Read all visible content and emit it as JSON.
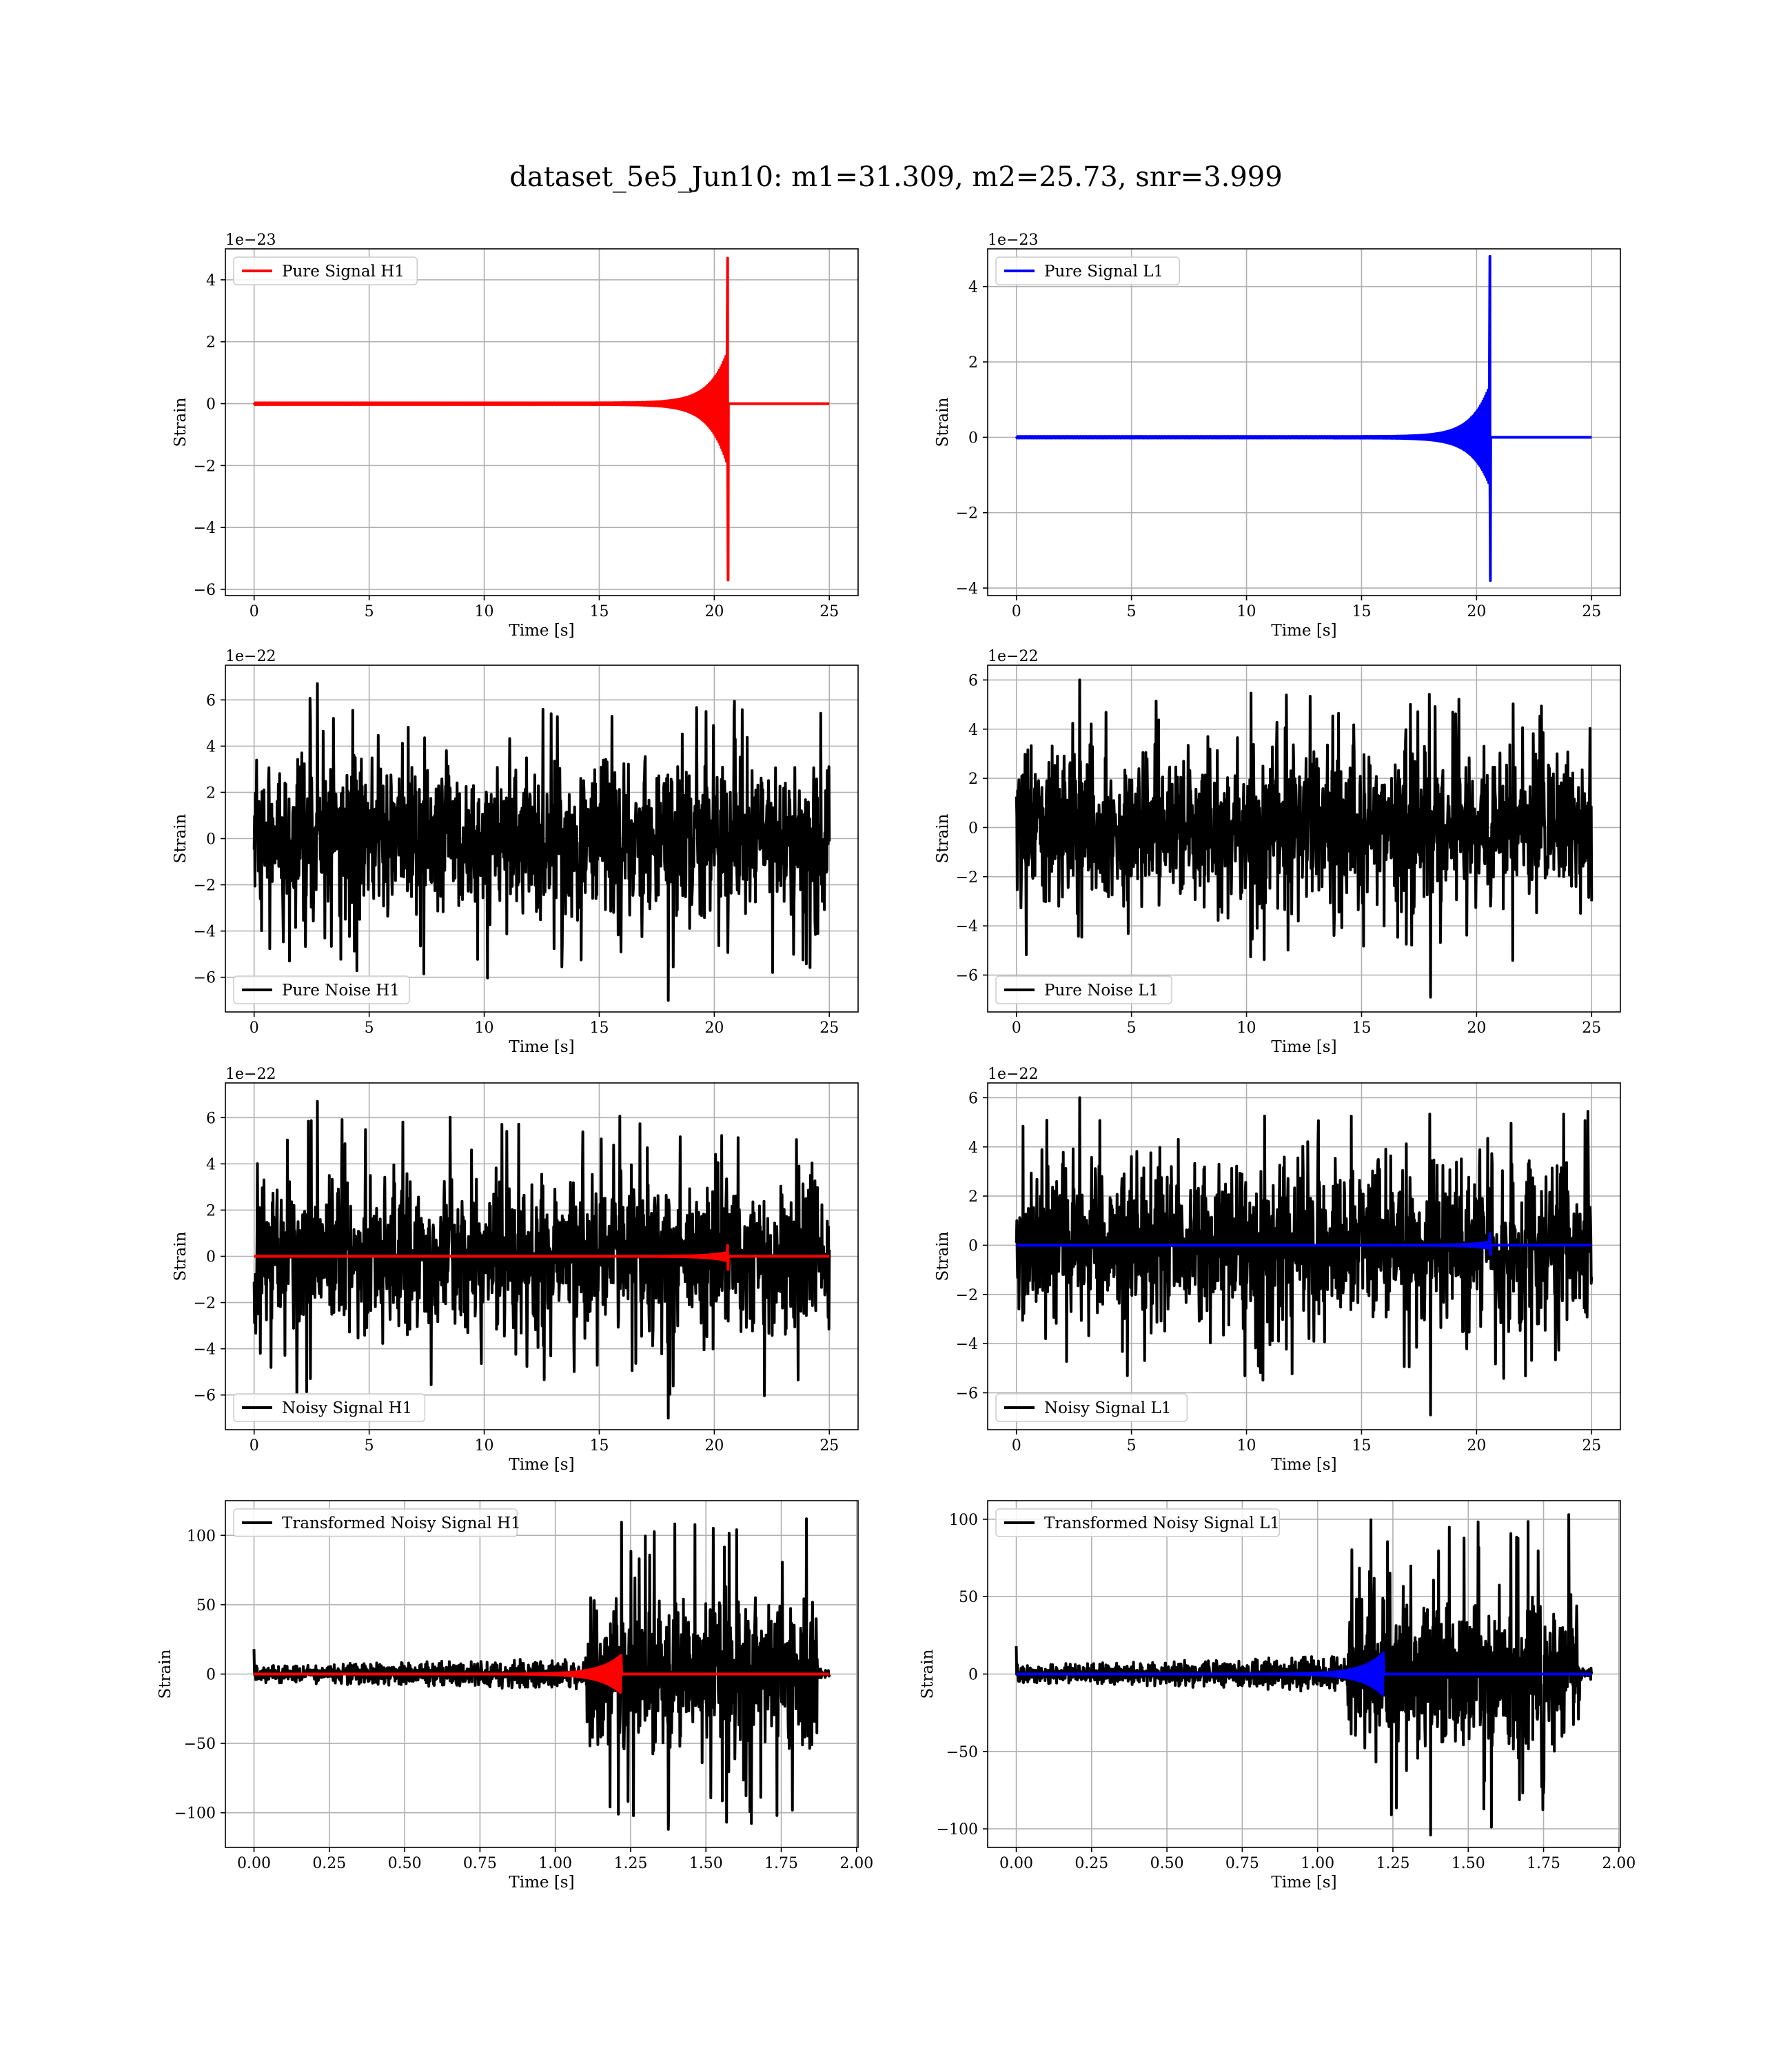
{
  "figure": {
    "title": "dataset_5e5_Jun10: m1=31.309, m2=25.73, snr=3.999"
  },
  "colors": {
    "h1_signal": "#ff0000",
    "l1_signal": "#0000ff",
    "noise": "#000000",
    "grid": "#b0b0b0",
    "axes": "#000000"
  },
  "chart_data": [
    {
      "type": "line",
      "row": 0,
      "col": 0,
      "xlabel": "Time [s]",
      "ylabel": "Strain",
      "offset": "1e−23",
      "xlim": [
        -1.25,
        26.25
      ],
      "ylim": [
        -6.2,
        5.0
      ],
      "xticks": [
        0,
        5,
        10,
        15,
        20,
        25
      ],
      "yticks": [
        -6,
        -4,
        -2,
        0,
        2,
        4
      ],
      "xtick_labels": [
        "0",
        "5",
        "10",
        "15",
        "20",
        "25"
      ],
      "ytick_labels": [
        "−6",
        "−4",
        "−2",
        "0",
        "2",
        "4"
      ],
      "grid": true,
      "legend_loc": "upper left",
      "series": [
        {
          "name": "Pure Signal H1",
          "kind": "chirp",
          "color": "#ff0000",
          "x_range": [
            0,
            25
          ],
          "merger_t": 20.6,
          "peak_pos": 4.7,
          "peak_neg": -5.7,
          "plateau_pos": 1.7,
          "plateau_neg": -2.0
        }
      ]
    },
    {
      "type": "line",
      "row": 0,
      "col": 1,
      "xlabel": "Time [s]",
      "ylabel": "Strain",
      "offset": "1e−23",
      "xlim": [
        -1.25,
        26.25
      ],
      "ylim": [
        -4.2,
        5.0
      ],
      "xticks": [
        0,
        5,
        10,
        15,
        20,
        25
      ],
      "yticks": [
        -4,
        -2,
        0,
        2,
        4
      ],
      "xtick_labels": [
        "0",
        "5",
        "10",
        "15",
        "20",
        "25"
      ],
      "ytick_labels": [
        "−4",
        "−2",
        "0",
        "2",
        "4"
      ],
      "grid": true,
      "legend_loc": "upper left",
      "series": [
        {
          "name": "Pure Signal L1",
          "kind": "chirp",
          "color": "#0000ff",
          "x_range": [
            0,
            25
          ],
          "merger_t": 20.6,
          "peak_pos": 4.8,
          "peak_neg": -3.8,
          "plateau_pos": 1.4,
          "plateau_neg": -1.3
        }
      ]
    },
    {
      "type": "line",
      "row": 1,
      "col": 0,
      "xlabel": "Time [s]",
      "ylabel": "Strain",
      "offset": "1e−22",
      "xlim": [
        -1.25,
        26.25
      ],
      "ylim": [
        -7.5,
        7.5
      ],
      "xticks": [
        0,
        5,
        10,
        15,
        20,
        25
      ],
      "yticks": [
        -6,
        -4,
        -2,
        0,
        2,
        4,
        6
      ],
      "xtick_labels": [
        "0",
        "5",
        "10",
        "15",
        "20",
        "25"
      ],
      "ytick_labels": [
        "−6",
        "−4",
        "−2",
        "0",
        "2",
        "4",
        "6"
      ],
      "grid": true,
      "legend_loc": "lower left",
      "series": [
        {
          "name": "Pure Noise H1",
          "kind": "noise",
          "color": "#000000",
          "x_range": [
            0,
            25
          ],
          "band": 3.6,
          "peak": 6.7,
          "low": -7.0
        }
      ]
    },
    {
      "type": "line",
      "row": 1,
      "col": 1,
      "xlabel": "Time [s]",
      "ylabel": "Strain",
      "offset": "1e−22",
      "xlim": [
        -1.25,
        26.25
      ],
      "ylim": [
        -7.5,
        6.6
      ],
      "xticks": [
        0,
        5,
        10,
        15,
        20,
        25
      ],
      "yticks": [
        -6,
        -4,
        -2,
        0,
        2,
        4,
        6
      ],
      "xtick_labels": [
        "0",
        "5",
        "10",
        "15",
        "20",
        "25"
      ],
      "ytick_labels": [
        "−6",
        "−4",
        "−2",
        "0",
        "2",
        "4",
        "6"
      ],
      "grid": true,
      "legend_loc": "lower left",
      "series": [
        {
          "name": "Pure Noise L1",
          "kind": "noise",
          "color": "#000000",
          "x_range": [
            0,
            25
          ],
          "band": 3.5,
          "peak": 6.0,
          "low": -6.9
        }
      ]
    },
    {
      "type": "line",
      "row": 2,
      "col": 0,
      "xlabel": "Time [s]",
      "ylabel": "Strain",
      "offset": "1e−22",
      "xlim": [
        -1.25,
        26.25
      ],
      "ylim": [
        -7.5,
        7.5
      ],
      "xticks": [
        0,
        5,
        10,
        15,
        20,
        25
      ],
      "yticks": [
        -6,
        -4,
        -2,
        0,
        2,
        4,
        6
      ],
      "xtick_labels": [
        "0",
        "5",
        "10",
        "15",
        "20",
        "25"
      ],
      "ytick_labels": [
        "−6",
        "−4",
        "−2",
        "0",
        "2",
        "4",
        "6"
      ],
      "grid": true,
      "legend_loc": "lower left",
      "series": [
        {
          "name": "Noisy Signal H1",
          "kind": "noise",
          "color": "#000000",
          "x_range": [
            0,
            25
          ],
          "band": 3.6,
          "peak": 6.7,
          "low": -7.0
        },
        {
          "name": "",
          "kind": "chirp",
          "color": "#ff0000",
          "x_range": [
            0,
            25
          ],
          "merger_t": 20.6,
          "peak_pos": 0.47,
          "peak_neg": -0.57,
          "plateau_pos": 0.17,
          "plateau_neg": -0.2
        }
      ]
    },
    {
      "type": "line",
      "row": 2,
      "col": 1,
      "xlabel": "Time [s]",
      "ylabel": "Strain",
      "offset": "1e−22",
      "xlim": [
        -1.25,
        26.25
      ],
      "ylim": [
        -7.5,
        6.6
      ],
      "xticks": [
        0,
        5,
        10,
        15,
        20,
        25
      ],
      "yticks": [
        -6,
        -4,
        -2,
        0,
        2,
        4,
        6
      ],
      "xtick_labels": [
        "0",
        "5",
        "10",
        "15",
        "20",
        "25"
      ],
      "ytick_labels": [
        "−6",
        "−4",
        "−2",
        "0",
        "2",
        "4",
        "6"
      ],
      "grid": true,
      "legend_loc": "lower left",
      "series": [
        {
          "name": "Noisy Signal L1",
          "kind": "noise",
          "color": "#000000",
          "x_range": [
            0,
            25
          ],
          "band": 3.5,
          "peak": 6.0,
          "low": -6.9
        },
        {
          "name": "",
          "kind": "chirp",
          "color": "#0000ff",
          "x_range": [
            0,
            25
          ],
          "merger_t": 20.6,
          "peak_pos": 0.48,
          "peak_neg": -0.38,
          "plateau_pos": 0.14,
          "plateau_neg": -0.13
        }
      ]
    },
    {
      "type": "line",
      "row": 3,
      "col": 0,
      "xlabel": "Time [s]",
      "ylabel": "Strain",
      "offset": "",
      "xlim": [
        -0.095,
        2.005
      ],
      "ylim": [
        -125,
        125
      ],
      "xticks": [
        0,
        0.25,
        0.5,
        0.75,
        1.0,
        1.25,
        1.5,
        1.75,
        2.0
      ],
      "yticks": [
        -100,
        -50,
        0,
        50,
        100
      ],
      "xtick_labels": [
        "0.00",
        "0.25",
        "0.50",
        "0.75",
        "1.00",
        "1.25",
        "1.50",
        "1.75",
        "2.00"
      ],
      "ytick_labels": [
        "−100",
        "−50",
        "0",
        "50",
        "100"
      ],
      "grid": true,
      "legend_loc": "upper left",
      "series": [
        {
          "name": "Transformed Noisy Signal H1",
          "kind": "tnoise",
          "color": "#000000",
          "x_range": [
            0,
            1.91
          ],
          "step_t": 1.1,
          "end_t": 1.87,
          "amp_pre": 12,
          "amp_post": 55,
          "peak": 112,
          "low": -112
        },
        {
          "name": "",
          "kind": "tchirp",
          "color": "#ff0000",
          "x_range": [
            0,
            1.91
          ],
          "merger_t": 1.22,
          "amp": 14
        }
      ]
    },
    {
      "type": "line",
      "row": 3,
      "col": 1,
      "xlabel": "Time [s]",
      "ylabel": "Strain",
      "offset": "",
      "xlim": [
        -0.095,
        2.005
      ],
      "ylim": [
        -112,
        112
      ],
      "xticks": [
        0,
        0.25,
        0.5,
        0.75,
        1.0,
        1.25,
        1.5,
        1.75,
        2.0
      ],
      "yticks": [
        -100,
        -50,
        0,
        50,
        100
      ],
      "xtick_labels": [
        "0.00",
        "0.25",
        "0.50",
        "0.75",
        "1.00",
        "1.25",
        "1.50",
        "1.75",
        "2.00"
      ],
      "ytick_labels": [
        "−100",
        "−50",
        "0",
        "50",
        "100"
      ],
      "grid": true,
      "legend_loc": "upper left",
      "series": [
        {
          "name": "Transformed Noisy Signal L1",
          "kind": "tnoise",
          "color": "#000000",
          "x_range": [
            0,
            1.91
          ],
          "step_t": 1.1,
          "end_t": 1.87,
          "amp_pre": 12,
          "amp_post": 50,
          "peak": 103,
          "low": -104
        },
        {
          "name": "",
          "kind": "tchirp",
          "color": "#0000ff",
          "x_range": [
            0,
            1.91
          ],
          "merger_t": 1.22,
          "amp": 14
        }
      ]
    }
  ]
}
